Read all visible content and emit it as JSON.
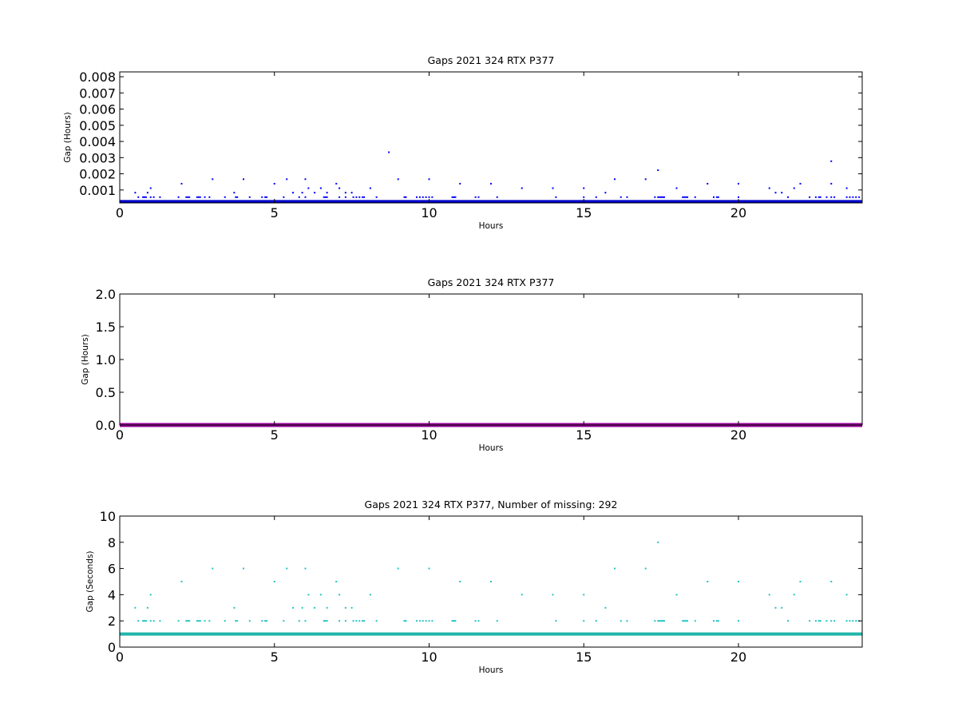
{
  "chart_data": [
    {
      "type": "scatter",
      "title": "Gaps 2021 324 RTX  P377",
      "xlabel": "Hours",
      "ylabel": "Gap (Hours)",
      "xlim": [
        0,
        24
      ],
      "ylim": [
        0.0002,
        0.0083
      ],
      "xticks": [
        0,
        5,
        10,
        15,
        20
      ],
      "yticks": [
        0.001,
        0.002,
        0.003,
        0.004,
        0.005,
        0.006,
        0.007,
        0.008
      ],
      "ytick_labels": [
        "0.001",
        "0.002",
        "0.003",
        "0.004",
        "0.005",
        "0.006",
        "0.007",
        "0.008"
      ],
      "grid": false,
      "baseline": {
        "value": 0.000278,
        "color": "#0000cc"
      },
      "series": [
        {
          "color": "#0000ff",
          "points": [
            [
              0.5,
              0.000833
            ],
            [
              0.9,
              0.000833
            ],
            [
              1.0,
              0.001111
            ],
            [
              2.0,
              0.001389
            ],
            [
              3.0,
              0.001667
            ],
            [
              3.7,
              0.000833
            ],
            [
              4.0,
              0.001667
            ],
            [
              5.0,
              0.001389
            ],
            [
              5.4,
              0.001667
            ],
            [
              5.6,
              0.000833
            ],
            [
              5.9,
              0.000833
            ],
            [
              6.0,
              0.001667
            ],
            [
              6.1,
              0.001111
            ],
            [
              6.3,
              0.000833
            ],
            [
              6.5,
              0.001111
            ],
            [
              6.7,
              0.000833
            ],
            [
              7.0,
              0.001389
            ],
            [
              7.1,
              0.001111
            ],
            [
              7.3,
              0.000833
            ],
            [
              7.5,
              0.000833
            ],
            [
              8.1,
              0.001111
            ],
            [
              8.7,
              0.003333
            ],
            [
              9.0,
              0.001667
            ],
            [
              10.0,
              0.001667
            ],
            [
              11.0,
              0.001389
            ],
            [
              12.0,
              0.001389
            ],
            [
              13.0,
              0.001111
            ],
            [
              14.0,
              0.001111
            ],
            [
              15.0,
              0.001111
            ],
            [
              15.7,
              0.000833
            ],
            [
              16.0,
              0.001667
            ],
            [
              17.0,
              0.001667
            ],
            [
              17.4,
              0.002222
            ],
            [
              18.0,
              0.001111
            ],
            [
              19.0,
              0.001389
            ],
            [
              20.0,
              0.001389
            ],
            [
              21.0,
              0.001111
            ],
            [
              21.2,
              0.000833
            ],
            [
              21.4,
              0.000833
            ],
            [
              21.8,
              0.001111
            ],
            [
              22.0,
              0.001389
            ],
            [
              23.0,
              0.002778
            ],
            [
              23.0,
              0.001389
            ],
            [
              23.5,
              0.001111
            ],
            [
              0.6,
              0.000556
            ],
            [
              0.75,
              0.000556
            ],
            [
              0.8,
              0.000556
            ],
            [
              0.85,
              0.000556
            ],
            [
              1.0,
              0.000556
            ],
            [
              1.1,
              0.000556
            ],
            [
              1.3,
              0.000556
            ],
            [
              1.9,
              0.000556
            ],
            [
              2.15,
              0.000556
            ],
            [
              2.2,
              0.000556
            ],
            [
              2.25,
              0.000556
            ],
            [
              2.5,
              0.000556
            ],
            [
              2.55,
              0.000556
            ],
            [
              2.6,
              0.000556
            ],
            [
              2.75,
              0.000556
            ],
            [
              2.9,
              0.000556
            ],
            [
              3.4,
              0.000556
            ],
            [
              3.75,
              0.000556
            ],
            [
              3.8,
              0.000556
            ],
            [
              4.2,
              0.000556
            ],
            [
              4.6,
              0.000556
            ],
            [
              4.7,
              0.000556
            ],
            [
              4.75,
              0.000556
            ],
            [
              5.3,
              0.000556
            ],
            [
              5.8,
              0.000556
            ],
            [
              6.0,
              0.000556
            ],
            [
              6.6,
              0.000556
            ],
            [
              6.65,
              0.000556
            ],
            [
              6.7,
              0.000556
            ],
            [
              7.1,
              0.000556
            ],
            [
              7.3,
              0.000556
            ],
            [
              7.55,
              0.000556
            ],
            [
              7.65,
              0.000556
            ],
            [
              7.75,
              0.000556
            ],
            [
              7.85,
              0.000556
            ],
            [
              7.9,
              0.000556
            ],
            [
              8.3,
              0.000556
            ],
            [
              9.2,
              0.000556
            ],
            [
              9.25,
              0.000556
            ],
            [
              9.6,
              0.000556
            ],
            [
              9.7,
              0.000556
            ],
            [
              9.8,
              0.000556
            ],
            [
              9.9,
              0.000556
            ],
            [
              10.0,
              0.000556
            ],
            [
              10.1,
              0.000556
            ],
            [
              10.75,
              0.000556
            ],
            [
              10.8,
              0.000556
            ],
            [
              10.85,
              0.000556
            ],
            [
              11.5,
              0.000556
            ],
            [
              11.6,
              0.000556
            ],
            [
              12.2,
              0.000556
            ],
            [
              14.1,
              0.000556
            ],
            [
              15.0,
              0.000556
            ],
            [
              15.4,
              0.000556
            ],
            [
              16.2,
              0.000556
            ],
            [
              16.4,
              0.000556
            ],
            [
              17.3,
              0.000556
            ],
            [
              17.4,
              0.000556
            ],
            [
              17.45,
              0.000556
            ],
            [
              17.5,
              0.000556
            ],
            [
              17.55,
              0.000556
            ],
            [
              17.6,
              0.000556
            ],
            [
              18.2,
              0.000556
            ],
            [
              18.25,
              0.000556
            ],
            [
              18.3,
              0.000556
            ],
            [
              18.35,
              0.000556
            ],
            [
              18.6,
              0.000556
            ],
            [
              19.2,
              0.000556
            ],
            [
              19.3,
              0.000556
            ],
            [
              19.35,
              0.000556
            ],
            [
              20.0,
              0.000556
            ],
            [
              21.6,
              0.000556
            ],
            [
              22.3,
              0.000556
            ],
            [
              22.5,
              0.000556
            ],
            [
              22.6,
              0.000556
            ],
            [
              22.65,
              0.000556
            ],
            [
              22.85,
              0.000556
            ],
            [
              23.0,
              0.000556
            ],
            [
              23.1,
              0.000556
            ],
            [
              23.5,
              0.000556
            ],
            [
              23.6,
              0.000556
            ],
            [
              23.7,
              0.000556
            ],
            [
              23.8,
              0.000556
            ],
            [
              23.9,
              0.000556
            ]
          ]
        }
      ]
    },
    {
      "type": "line",
      "title": "Gaps 2021 324 RTX  P377",
      "xlabel": "Hours",
      "ylabel": "Gap (Hours)",
      "xlim": [
        0,
        24
      ],
      "ylim": [
        0,
        2
      ],
      "xticks": [
        0,
        5,
        10,
        15,
        20
      ],
      "yticks": [
        0.0,
        0.5,
        1.0,
        1.5,
        2.0
      ],
      "ytick_labels": [
        "0.0",
        "0.5",
        "1.0",
        "1.5",
        "2.0"
      ],
      "grid": false,
      "baseline": {
        "value": 0.0,
        "color": "#990099"
      }
    },
    {
      "type": "scatter",
      "title": "Gaps 2021 324 RTX  P377, Number of missing: 292",
      "xlabel": "Hours",
      "ylabel": "Gap (Seconds)",
      "xlim": [
        0,
        24
      ],
      "ylim": [
        0,
        10
      ],
      "xticks": [
        0,
        5,
        10,
        15,
        20
      ],
      "yticks": [
        0,
        2,
        4,
        6,
        8,
        10
      ],
      "ytick_labels": [
        "0",
        "2",
        "4",
        "6",
        "8",
        "10"
      ],
      "grid": false,
      "baseline": {
        "value": 1,
        "color": "#22b5aa"
      },
      "series": [
        {
          "color": "#22c4c4",
          "points": [
            [
              0.5,
              3
            ],
            [
              0.9,
              3
            ],
            [
              1.0,
              4
            ],
            [
              2.0,
              5
            ],
            [
              3.0,
              6
            ],
            [
              3.7,
              3
            ],
            [
              4.0,
              6
            ],
            [
              5.0,
              5
            ],
            [
              5.4,
              6
            ],
            [
              5.6,
              3
            ],
            [
              5.9,
              3
            ],
            [
              6.0,
              6
            ],
            [
              6.1,
              4
            ],
            [
              6.3,
              3
            ],
            [
              6.5,
              4
            ],
            [
              6.7,
              3
            ],
            [
              7.0,
              5
            ],
            [
              7.1,
              4
            ],
            [
              7.3,
              3
            ],
            [
              7.5,
              3
            ],
            [
              8.1,
              4
            ],
            [
              9.0,
              6
            ],
            [
              10.0,
              6
            ],
            [
              11.0,
              5
            ],
            [
              12.0,
              5
            ],
            [
              13.0,
              4
            ],
            [
              14.0,
              4
            ],
            [
              15.0,
              4
            ],
            [
              15.7,
              3
            ],
            [
              16.0,
              6
            ],
            [
              17.0,
              6
            ],
            [
              17.4,
              8
            ],
            [
              18.0,
              4
            ],
            [
              19.0,
              5
            ],
            [
              20.0,
              5
            ],
            [
              21.0,
              4
            ],
            [
              21.2,
              3
            ],
            [
              21.4,
              3
            ],
            [
              21.8,
              4
            ],
            [
              22.0,
              5
            ],
            [
              23.0,
              5
            ],
            [
              23.5,
              4
            ],
            [
              0.6,
              2
            ],
            [
              0.75,
              2
            ],
            [
              0.8,
              2
            ],
            [
              0.85,
              2
            ],
            [
              1.0,
              2
            ],
            [
              1.1,
              2
            ],
            [
              1.3,
              2
            ],
            [
              1.9,
              2
            ],
            [
              2.15,
              2
            ],
            [
              2.2,
              2
            ],
            [
              2.25,
              2
            ],
            [
              2.5,
              2
            ],
            [
              2.55,
              2
            ],
            [
              2.6,
              2
            ],
            [
              2.75,
              2
            ],
            [
              2.9,
              2
            ],
            [
              3.4,
              2
            ],
            [
              3.75,
              2
            ],
            [
              3.8,
              2
            ],
            [
              4.2,
              2
            ],
            [
              4.6,
              2
            ],
            [
              4.7,
              2
            ],
            [
              4.75,
              2
            ],
            [
              5.3,
              2
            ],
            [
              5.8,
              2
            ],
            [
              6.0,
              2
            ],
            [
              6.6,
              2
            ],
            [
              6.65,
              2
            ],
            [
              6.7,
              2
            ],
            [
              7.1,
              2
            ],
            [
              7.3,
              2
            ],
            [
              7.55,
              2
            ],
            [
              7.65,
              2
            ],
            [
              7.75,
              2
            ],
            [
              7.85,
              2
            ],
            [
              7.9,
              2
            ],
            [
              8.3,
              2
            ],
            [
              9.2,
              2
            ],
            [
              9.25,
              2
            ],
            [
              9.6,
              2
            ],
            [
              9.7,
              2
            ],
            [
              9.8,
              2
            ],
            [
              9.9,
              2
            ],
            [
              10.0,
              2
            ],
            [
              10.1,
              2
            ],
            [
              10.75,
              2
            ],
            [
              10.8,
              2
            ],
            [
              10.85,
              2
            ],
            [
              11.5,
              2
            ],
            [
              11.6,
              2
            ],
            [
              12.2,
              2
            ],
            [
              14.1,
              2
            ],
            [
              15.0,
              2
            ],
            [
              15.4,
              2
            ],
            [
              16.2,
              2
            ],
            [
              16.4,
              2
            ],
            [
              17.3,
              2
            ],
            [
              17.4,
              2
            ],
            [
              17.45,
              2
            ],
            [
              17.5,
              2
            ],
            [
              17.55,
              2
            ],
            [
              17.6,
              2
            ],
            [
              18.2,
              2
            ],
            [
              18.25,
              2
            ],
            [
              18.3,
              2
            ],
            [
              18.35,
              2
            ],
            [
              18.6,
              2
            ],
            [
              19.2,
              2
            ],
            [
              19.3,
              2
            ],
            [
              19.35,
              2
            ],
            [
              20.0,
              2
            ],
            [
              21.6,
              2
            ],
            [
              22.3,
              2
            ],
            [
              22.5,
              2
            ],
            [
              22.6,
              2
            ],
            [
              22.65,
              2
            ],
            [
              22.85,
              2
            ],
            [
              23.0,
              2
            ],
            [
              23.1,
              2
            ],
            [
              23.5,
              2
            ],
            [
              23.6,
              2
            ],
            [
              23.7,
              2
            ],
            [
              23.8,
              2
            ],
            [
              23.9,
              2
            ]
          ]
        }
      ]
    }
  ]
}
